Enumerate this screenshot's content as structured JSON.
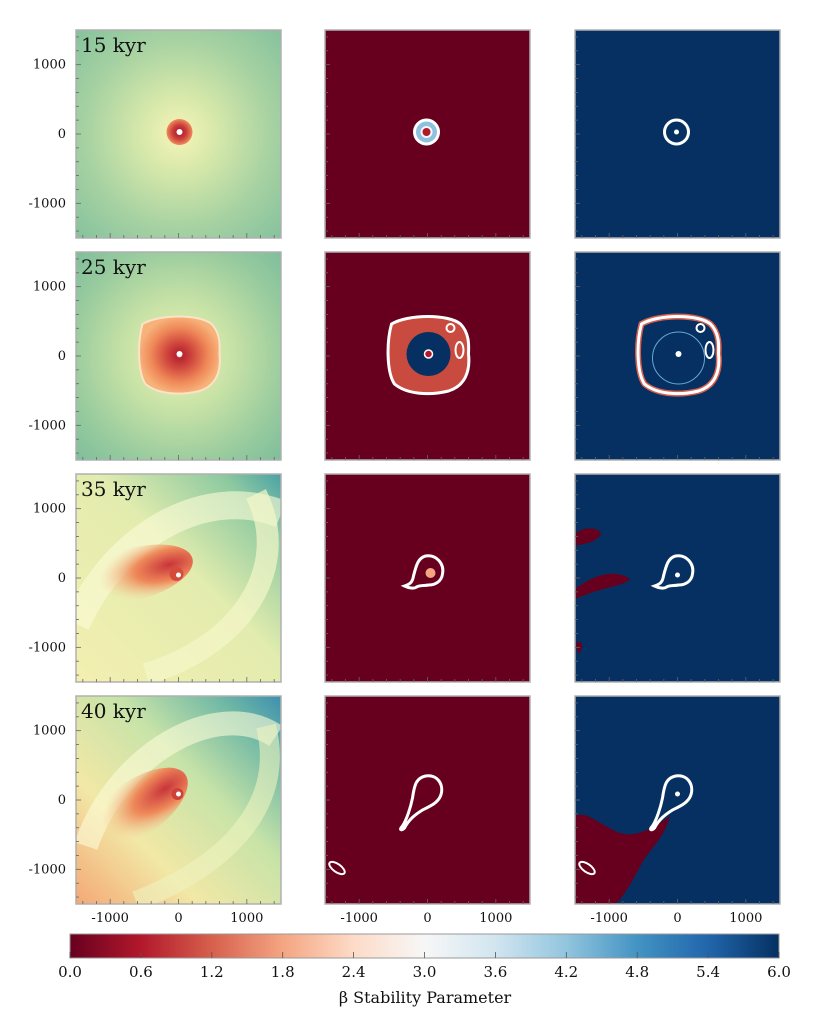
{
  "chart_data": {
    "type": "heatmap",
    "layout": "4 rows x 3 columns",
    "rows": [
      {
        "time_label": "15 kyr"
      },
      {
        "time_label": "25 kyr"
      },
      {
        "time_label": "35 kyr"
      },
      {
        "time_label": "40 kyr"
      }
    ],
    "x_range": [
      -1500,
      1500
    ],
    "y_range": [
      -1500,
      1500
    ],
    "x_ticks": [
      "-1000",
      "0",
      "1000"
    ],
    "y_ticks": [
      "1000",
      "0",
      "-1000"
    ],
    "x_tick_values": [
      -1000,
      0,
      1000
    ],
    "y_tick_values": [
      1000,
      0,
      -1000
    ],
    "colorbar": {
      "label": "β Stability Parameter",
      "range": [
        0.0,
        6.0
      ],
      "ticks": [
        "0.0",
        "0.6",
        "1.2",
        "1.8",
        "2.4",
        "3.0",
        "3.6",
        "4.2",
        "4.8",
        "5.4",
        "6.0"
      ],
      "colormap": "RdBu"
    },
    "colors": {
      "dark_red": "#67001f",
      "dark_blue": "#053061",
      "contour": "#ffffff",
      "frame": "#b0b0b0"
    }
  }
}
